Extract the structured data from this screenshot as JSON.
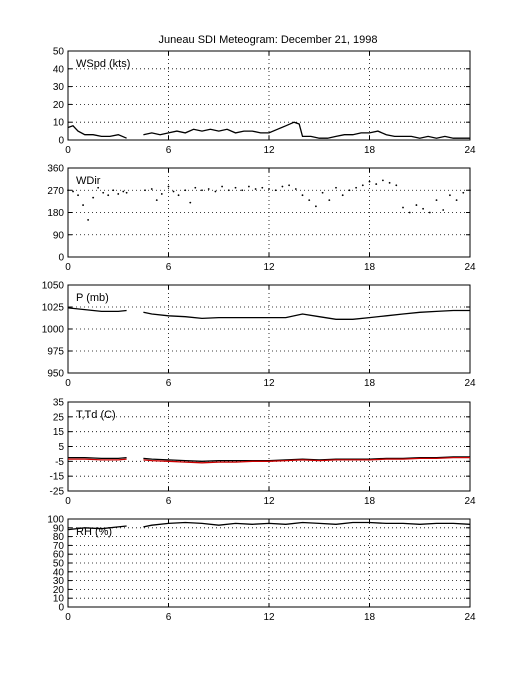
{
  "title": "Juneau SDI Meteogram:   December 21, 1998",
  "chart_data": [
    {
      "type": "line",
      "label": "WSpd (kts)",
      "x_ticks": [
        "0",
        "6",
        "12",
        "18",
        "24"
      ],
      "xlim": [
        0,
        24
      ],
      "ylim": [
        0,
        50
      ],
      "y_ticks": [
        "0",
        "10",
        "20",
        "30",
        "40",
        "50"
      ],
      "grid": true,
      "series": [
        {
          "color": "#000000",
          "style": "line",
          "x": [
            0.0,
            0.3,
            0.6,
            1.0,
            1.5,
            2.0,
            2.5,
            3.0,
            3.5,
            null,
            4.5,
            5.0,
            5.5,
            6.0,
            6.5,
            7.0,
            7.5,
            8.0,
            8.5,
            9.0,
            9.5,
            10.0,
            10.5,
            11.0,
            11.5,
            12.0,
            12.5,
            13.0,
            13.5,
            13.8,
            14.0,
            14.5,
            15.0,
            15.5,
            16.0,
            16.5,
            17.0,
            17.5,
            18.0,
            18.5,
            19.0,
            19.5,
            20.0,
            20.5,
            21.0,
            21.5,
            22.0,
            22.5,
            23.0,
            23.5,
            24.0
          ],
          "y": [
            7,
            8,
            5,
            3,
            3,
            2,
            2,
            3,
            1,
            null,
            3,
            4,
            3,
            4,
            5,
            4,
            6,
            5,
            6,
            5,
            6,
            4,
            5,
            5,
            4,
            4,
            6,
            8,
            10,
            9,
            2,
            2,
            1,
            1,
            2,
            3,
            3,
            4,
            4,
            5,
            3,
            2,
            2,
            2,
            1,
            2,
            1,
            2,
            1,
            1,
            1
          ]
        }
      ]
    },
    {
      "type": "scatter",
      "label": "WDir",
      "x_ticks": [
        "0",
        "6",
        "12",
        "18",
        "24"
      ],
      "xlim": [
        0,
        24
      ],
      "ylim": [
        0,
        360
      ],
      "y_ticks": [
        "0",
        "90",
        "180",
        "270",
        "360"
      ],
      "grid": true,
      "series": [
        {
          "color": "#000000",
          "style": "dots",
          "x": [
            0.0,
            0.3,
            0.6,
            0.9,
            1.2,
            1.5,
            1.8,
            2.1,
            2.4,
            2.7,
            3.0,
            3.3,
            3.5,
            4.6,
            5.0,
            5.3,
            5.6,
            6.0,
            6.3,
            6.6,
            7.0,
            7.3,
            7.6,
            8.0,
            8.4,
            8.8,
            9.2,
            9.6,
            10.0,
            10.4,
            10.8,
            11.2,
            11.6,
            12.0,
            12.4,
            12.8,
            13.2,
            13.6,
            14.0,
            14.4,
            14.8,
            15.2,
            15.6,
            16.0,
            16.4,
            16.8,
            17.2,
            17.6,
            18.0,
            18.4,
            18.8,
            19.2,
            19.6,
            20.0,
            20.4,
            20.8,
            21.2,
            21.6,
            22.0,
            22.4,
            22.8,
            23.2,
            23.6,
            24.0
          ],
          "y": [
            270,
            265,
            250,
            210,
            150,
            240,
            280,
            260,
            250,
            270,
            255,
            265,
            260,
            270,
            275,
            230,
            255,
            285,
            265,
            250,
            270,
            220,
            280,
            270,
            275,
            265,
            285,
            270,
            280,
            270,
            285,
            275,
            280,
            275,
            270,
            285,
            290,
            275,
            250,
            230,
            205,
            260,
            230,
            280,
            250,
            270,
            280,
            290,
            305,
            295,
            310,
            300,
            290,
            200,
            180,
            210,
            195,
            180,
            230,
            190,
            250,
            230,
            260,
            270
          ]
        }
      ]
    },
    {
      "type": "line",
      "label": "P (mb)",
      "x_ticks": [
        "0",
        "6",
        "12",
        "18",
        "24"
      ],
      "xlim": [
        0,
        24
      ],
      "ylim": [
        950,
        1050
      ],
      "y_ticks": [
        "950",
        "975",
        "1000",
        "1025",
        "1050"
      ],
      "grid": true,
      "series": [
        {
          "color": "#000000",
          "style": "line",
          "x": [
            0.0,
            1.0,
            2.0,
            3.0,
            3.5,
            null,
            4.5,
            5.0,
            6.0,
            7.0,
            8.0,
            9.0,
            10.0,
            11.0,
            12.0,
            13.0,
            14.0,
            15.0,
            16.0,
            17.0,
            18.0,
            19.0,
            20.0,
            21.0,
            22.0,
            23.0,
            24.0
          ],
          "y": [
            1024,
            1022,
            1020,
            1020,
            1021,
            null,
            1019,
            1017,
            1015,
            1014,
            1012,
            1013,
            1013,
            1013,
            1013,
            1013,
            1017,
            1014,
            1011,
            1011,
            1013,
            1015,
            1017,
            1019,
            1020,
            1021,
            1021
          ]
        }
      ]
    },
    {
      "type": "line",
      "label": "T,Td (C)",
      "x_ticks": [
        "0",
        "6",
        "12",
        "18",
        "24"
      ],
      "xlim": [
        0,
        24
      ],
      "ylim": [
        -25,
        35
      ],
      "y_ticks": [
        "-25",
        "-15",
        "-5",
        "5",
        "15",
        "25",
        "35"
      ],
      "grid": true,
      "series": [
        {
          "color": "#000000",
          "style": "line",
          "x": [
            0.0,
            1.0,
            2.0,
            3.0,
            3.5,
            null,
            4.5,
            5.0,
            6.0,
            7.0,
            8.0,
            9.0,
            10.0,
            11.0,
            12.0,
            13.0,
            14.0,
            15.0,
            16.0,
            17.0,
            18.0,
            19.0,
            20.0,
            21.0,
            22.0,
            23.0,
            24.0
          ],
          "y": [
            -2.5,
            -2.5,
            -3,
            -3,
            -2.5,
            null,
            -3,
            -3.5,
            -4,
            -4.5,
            -5,
            -4.5,
            -4.5,
            -4.5,
            -4.5,
            -4,
            -3.5,
            -4,
            -3.5,
            -3.5,
            -3.5,
            -3,
            -3,
            -2.5,
            -2.5,
            -2,
            -2
          ]
        },
        {
          "color": "#cc0000",
          "style": "line",
          "x": [
            0.0,
            1.0,
            2.0,
            3.0,
            3.5,
            null,
            4.5,
            5.0,
            6.0,
            7.0,
            8.0,
            9.0,
            10.0,
            11.0,
            12.0,
            13.0,
            14.0,
            15.0,
            16.0,
            17.0,
            18.0,
            19.0,
            20.0,
            21.0,
            22.0,
            23.0,
            24.0
          ],
          "y": [
            -3.5,
            -3.5,
            -4,
            -4,
            -3.5,
            null,
            -4,
            -4.5,
            -5,
            -5.5,
            -6,
            -5.5,
            -5.5,
            -5,
            -5,
            -4.5,
            -4,
            -4.5,
            -4,
            -4,
            -4,
            -3.5,
            -3.5,
            -3,
            -3,
            -2.5,
            -2.5
          ]
        }
      ]
    },
    {
      "type": "line",
      "label": "RH (%)",
      "x_ticks": [
        "0",
        "6",
        "12",
        "18",
        "24"
      ],
      "xlim": [
        0,
        24
      ],
      "ylim": [
        0,
        100
      ],
      "y_ticks": [
        "0",
        "10",
        "20",
        "30",
        "40",
        "50",
        "60",
        "70",
        "80",
        "90",
        "100"
      ],
      "grid": true,
      "series": [
        {
          "color": "#000000",
          "style": "line",
          "x": [
            0.0,
            1.0,
            2.0,
            3.0,
            3.5,
            null,
            4.5,
            5.0,
            6.0,
            7.0,
            8.0,
            9.0,
            10.0,
            11.0,
            12.0,
            13.0,
            14.0,
            15.0,
            16.0,
            17.0,
            18.0,
            19.0,
            20.0,
            21.0,
            22.0,
            23.0,
            24.0
          ],
          "y": [
            88,
            90,
            89,
            91,
            92,
            null,
            91,
            93,
            95,
            96,
            95,
            93,
            95,
            94,
            95,
            94,
            96,
            95,
            94,
            96,
            96,
            95,
            95,
            94,
            95,
            95,
            94
          ]
        }
      ]
    }
  ]
}
